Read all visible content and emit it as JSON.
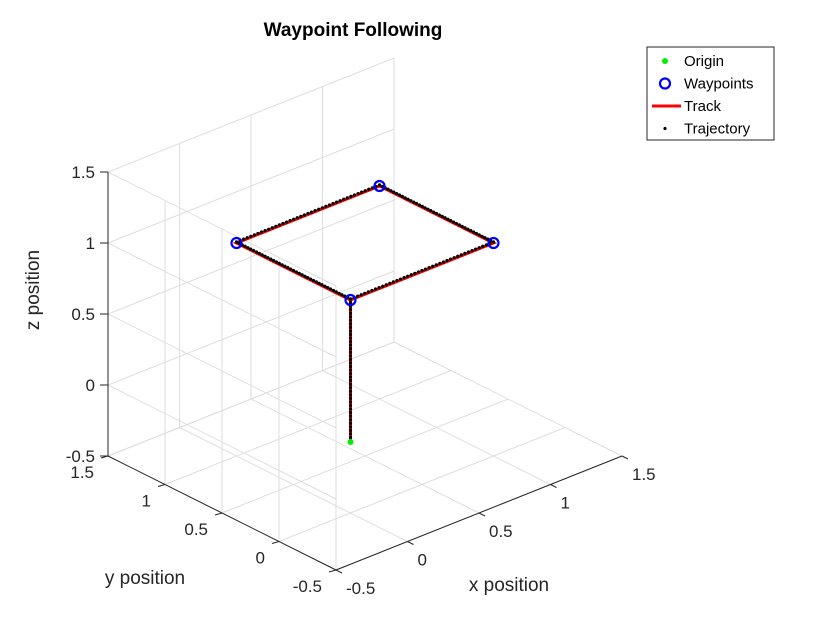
{
  "chart_data": {
    "type": "line3d",
    "title": "Waypoint Following",
    "xlabel": "x position",
    "ylabel": "y position",
    "zlabel": "z position",
    "xlim": [
      -0.5,
      1.5
    ],
    "ylim": [
      -0.5,
      1.5
    ],
    "zlim": [
      -0.5,
      1.5
    ],
    "xticks": [
      "-0.5",
      "0",
      "0.5",
      "1",
      "1.5"
    ],
    "yticks": [
      "-0.5",
      "0",
      "0.5",
      "1",
      "1.5"
    ],
    "zticks": [
      "-0.5",
      "0",
      "0.5",
      "1",
      "1.5"
    ],
    "grid": true,
    "legend_position": "top-right",
    "legend": [
      {
        "name": "Origin",
        "color": "#00ee00",
        "marker": "dot"
      },
      {
        "name": "Waypoints",
        "color": "#0000ff",
        "marker": "circle"
      },
      {
        "name": "Track",
        "color": "#ff0000",
        "marker": "line"
      },
      {
        "name": "Trajectory",
        "color": "#000000",
        "marker": "point"
      }
    ],
    "origin": [
      0,
      0,
      0
    ],
    "waypoints": [
      [
        0,
        0,
        1
      ],
      [
        1,
        0,
        1
      ],
      [
        1,
        1,
        1
      ],
      [
        0,
        1,
        1
      ]
    ],
    "track": [
      [
        0,
        0,
        0
      ],
      [
        0,
        0,
        1
      ],
      [
        1,
        0,
        1
      ],
      [
        1,
        1,
        1
      ],
      [
        0,
        1,
        1
      ],
      [
        0,
        0,
        1
      ]
    ]
  }
}
